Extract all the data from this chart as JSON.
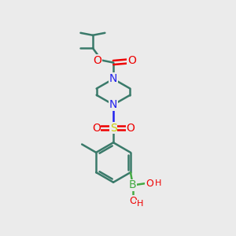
{
  "bg_color": "#ebebeb",
  "bond_color": "#3a7a6a",
  "N_color": "#2222ee",
  "O_color": "#ee0000",
  "S_color": "#cccc00",
  "B_color": "#44aa44",
  "line_width": 1.8,
  "figsize": [
    3.0,
    3.0
  ],
  "dpi": 100,
  "xlim": [
    0,
    10
  ],
  "ylim": [
    0,
    10
  ]
}
